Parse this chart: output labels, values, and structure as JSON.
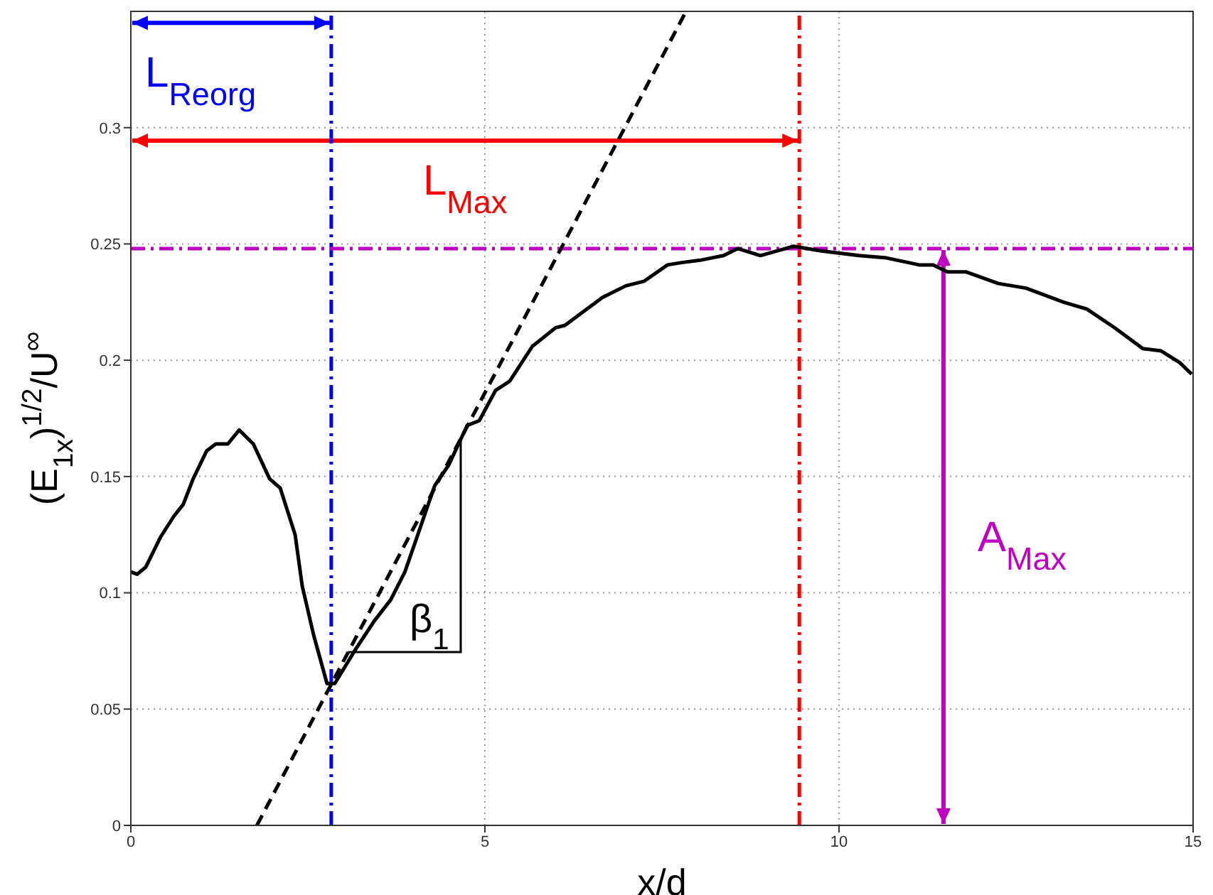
{
  "chart_data": {
    "type": "line",
    "xlabel": "x/d",
    "ylabel": "(E$_{1x}$)$^{1/2}$/U$^{∞}$",
    "xlim": [
      0,
      15
    ],
    "xticks": [
      0,
      5,
      10,
      15
    ],
    "ylim": [
      0,
      0.35
    ],
    "yticks": [
      0,
      0.05,
      0.1,
      0.15,
      0.2,
      0.25,
      0.3
    ],
    "grid": true,
    "legend": false,
    "marker": "none",
    "series": [
      {
        "color": "#000000",
        "line_style": "solid",
        "x": [
          0,
          0.09,
          0.21,
          0.42,
          0.61,
          0.74,
          0.88,
          1.07,
          1.2,
          1.37,
          1.53,
          1.73,
          1.96,
          2.11,
          2.32,
          2.42,
          2.58,
          2.77,
          2.88,
          3.18,
          3.44,
          3.67,
          3.87,
          4.03,
          4.29,
          4.49,
          4.75,
          4.92,
          5.15,
          5.35,
          5.67,
          6,
          6.13,
          6.66,
          6.99,
          7.25,
          7.58,
          7.78,
          8.04,
          8.37,
          8.57,
          8.89,
          9.36,
          9.75,
          10.28,
          10.67,
          11.13,
          11.33,
          11.53,
          11.79,
          12.25,
          12.64,
          13.17,
          13.5,
          13.89,
          14.29,
          14.55,
          14.81,
          14.98
        ],
        "values": [
          0.109,
          0.108,
          0.111,
          0.124,
          0.133,
          0.138,
          0.149,
          0.161,
          0.164,
          0.164,
          0.17,
          0.164,
          0.149,
          0.145,
          0.125,
          0.103,
          0.082,
          0.061,
          0.061,
          0.076,
          0.088,
          0.097,
          0.109,
          0.123,
          0.146,
          0.155,
          0.172,
          0.174,
          0.187,
          0.191,
          0.206,
          0.214,
          0.215,
          0.227,
          0.232,
          0.234,
          0.241,
          0.242,
          0.243,
          0.245,
          0.248,
          0.245,
          0.249,
          0.247,
          0.245,
          0.244,
          0.241,
          0.241,
          0.238,
          0.238,
          0.233,
          0.231,
          0.225,
          0.222,
          0.214,
          0.205,
          0.204,
          0.199,
          0.194
        ]
      },
      {
        "color": "#000000",
        "line_style": "dashed",
        "x": [
          1.78,
          7.84
        ],
        "values": [
          0,
          0.35
        ]
      }
    ],
    "ref_lines": [
      {
        "axis": "x",
        "value": 2.83,
        "color": "#0000ff",
        "line_style": "dashed"
      },
      {
        "axis": "x",
        "value": 9.44,
        "color": "#ff0000",
        "line_style": "dashed"
      },
      {
        "axis": "y",
        "value": 0.248,
        "color": "#c000c0",
        "line_style": "dashed"
      }
    ],
    "annotations": [
      {
        "text": "L$_{Reorg}$",
        "x": 2.83,
        "y": 0.345
      },
      "L$_{Max}$",
      "A$_{Max}$",
      "β$_{1}$"
    ]
  }
}
